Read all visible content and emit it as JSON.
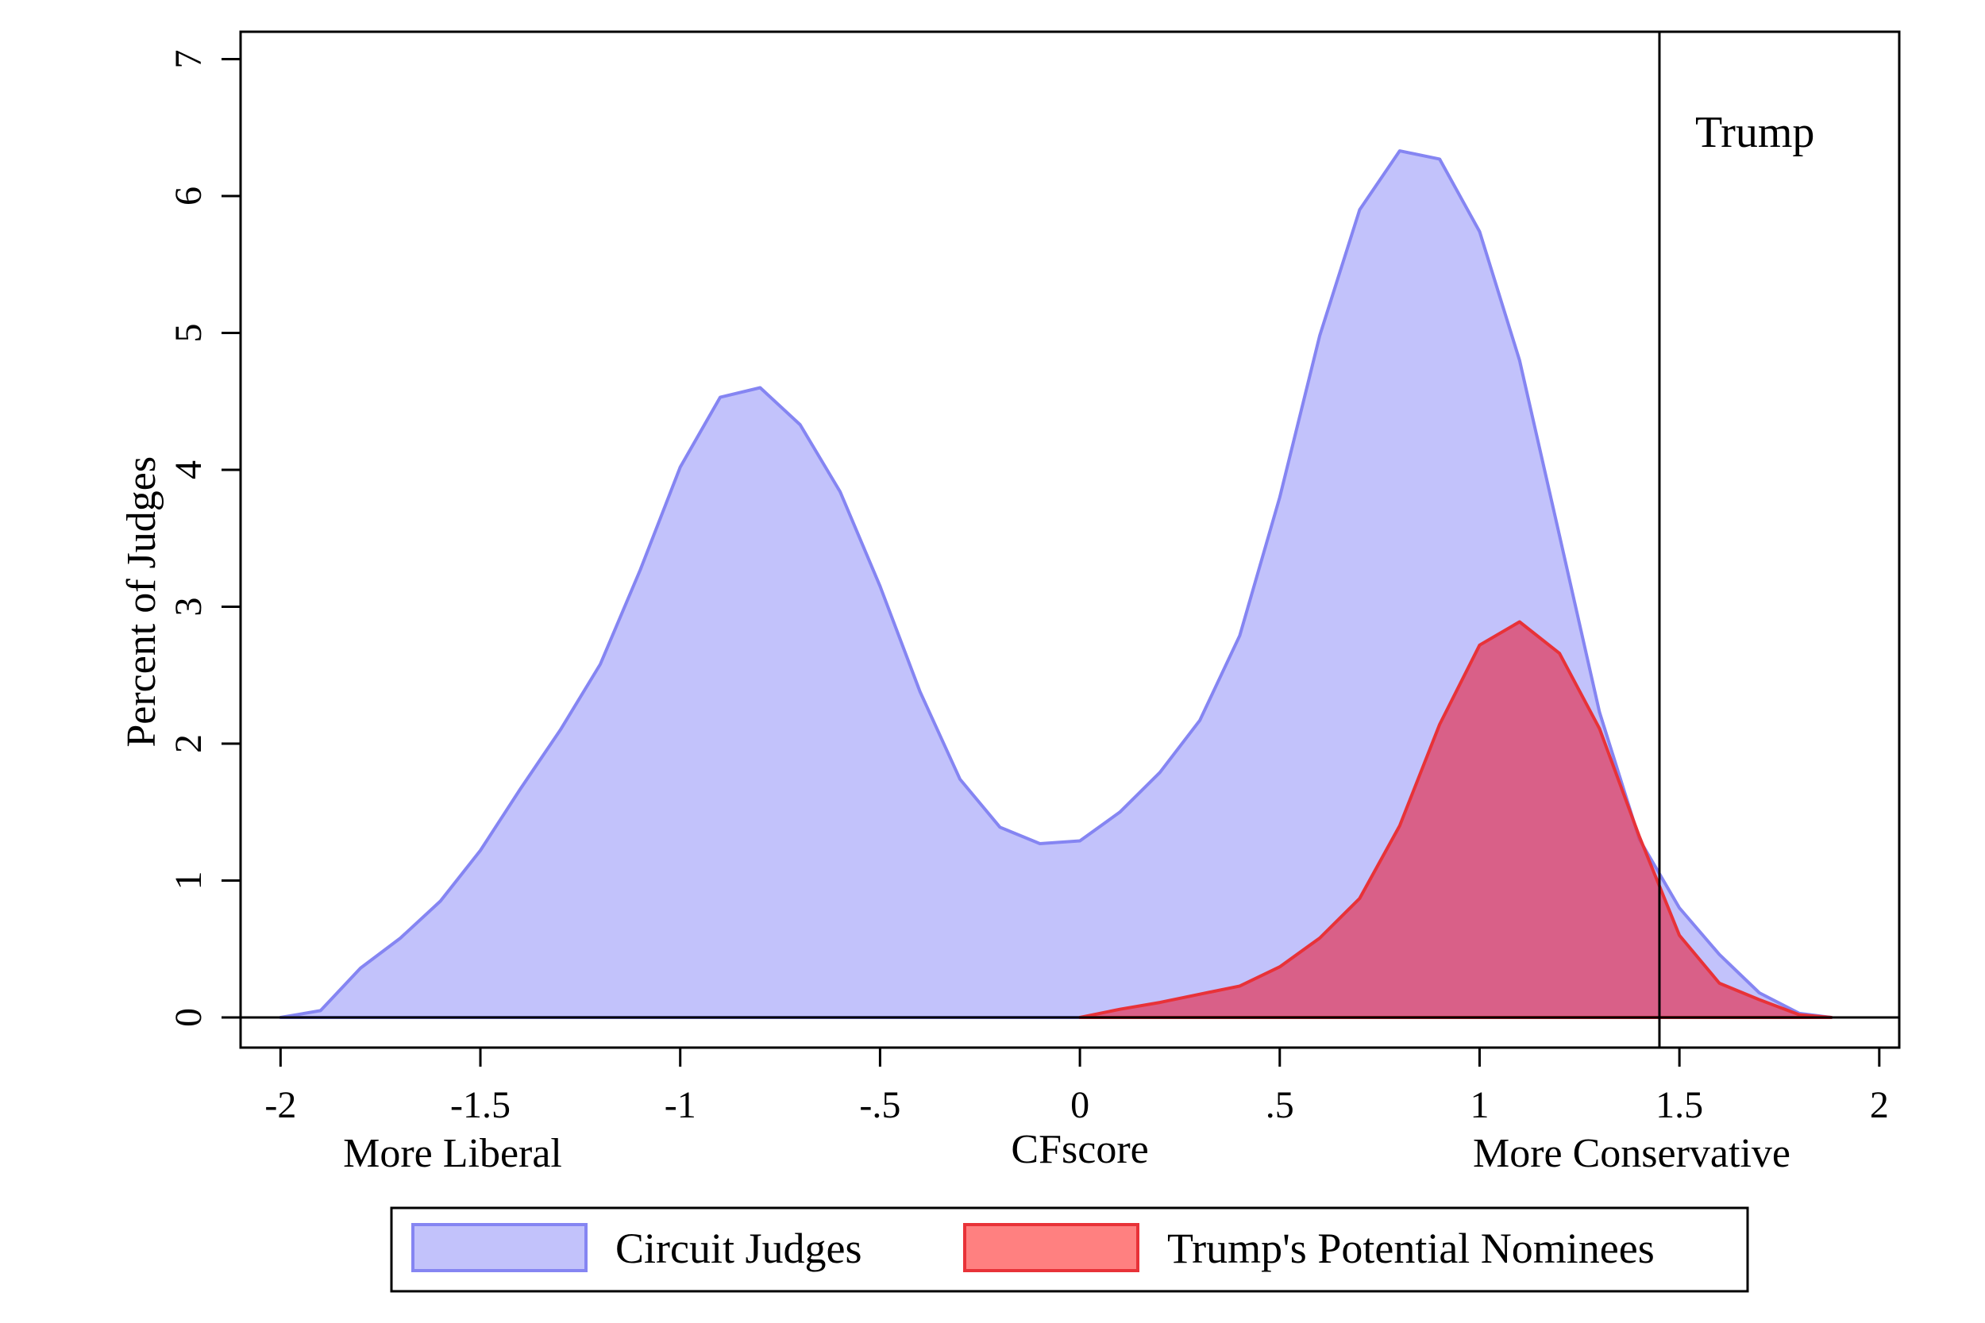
{
  "chart_data": {
    "type": "area",
    "xlabel": "CFscore",
    "ylabel": "Percent of Judges",
    "xlim": [
      -2.1,
      2.05
    ],
    "ylim": [
      -0.22,
      7.2
    ],
    "x_ticks": [
      -2,
      -1.5,
      -1,
      -0.5,
      0,
      0.5,
      1,
      1.5,
      2
    ],
    "x_tick_labels": [
      "-2",
      "-1.5",
      "-1",
      "-.5",
      "0",
      ".5",
      "1",
      "1.5",
      "2"
    ],
    "y_ticks": [
      0,
      1,
      2,
      3,
      4,
      5,
      6,
      7
    ],
    "y_tick_labels": [
      "0",
      "1",
      "2",
      "3",
      "4",
      "5",
      "6",
      "7"
    ],
    "x_axis_annotations": {
      "left": "More Liberal",
      "right": "More Conservative"
    },
    "reference_line": {
      "x": 1.45,
      "label": "Trump"
    },
    "grid": false,
    "legend_position": "bottom",
    "series": [
      {
        "name": "Circuit Judges",
        "fill": "#c2c2fb",
        "stroke": "#8585f2",
        "x": [
          -2.0,
          -1.9,
          -1.8,
          -1.7,
          -1.6,
          -1.5,
          -1.4,
          -1.3,
          -1.2,
          -1.1,
          -1.0,
          -0.9,
          -0.8,
          -0.7,
          -0.6,
          -0.5,
          -0.4,
          -0.3,
          -0.2,
          -0.1,
          0.0,
          0.1,
          0.2,
          0.3,
          0.4,
          0.5,
          0.6,
          0.7,
          0.8,
          0.9,
          1.0,
          1.1,
          1.2,
          1.3,
          1.4,
          1.5,
          1.6,
          1.7,
          1.8,
          1.88
        ],
        "y": [
          0.0,
          0.05,
          0.36,
          0.58,
          0.85,
          1.22,
          1.67,
          2.1,
          2.58,
          3.27,
          4.02,
          4.53,
          4.6,
          4.33,
          3.84,
          3.15,
          2.38,
          1.74,
          1.39,
          1.27,
          1.29,
          1.5,
          1.79,
          2.17,
          2.79,
          3.8,
          4.98,
          5.9,
          6.33,
          6.27,
          5.74,
          4.8,
          3.52,
          2.23,
          1.3,
          0.8,
          0.46,
          0.18,
          0.03,
          0.0
        ]
      },
      {
        "name": "Trump's Potential Nominees",
        "fill": "#e23a5c",
        "stroke": "#e83238",
        "x": [
          0.0,
          0.1,
          0.2,
          0.3,
          0.4,
          0.5,
          0.6,
          0.7,
          0.8,
          0.9,
          1.0,
          1.1,
          1.2,
          1.3,
          1.4,
          1.5,
          1.6,
          1.7,
          1.8,
          1.88
        ],
        "y": [
          0.0,
          0.06,
          0.11,
          0.17,
          0.23,
          0.37,
          0.58,
          0.87,
          1.4,
          2.14,
          2.72,
          2.89,
          2.66,
          2.11,
          1.32,
          0.6,
          0.25,
          0.13,
          0.02,
          0.0
        ]
      }
    ]
  }
}
